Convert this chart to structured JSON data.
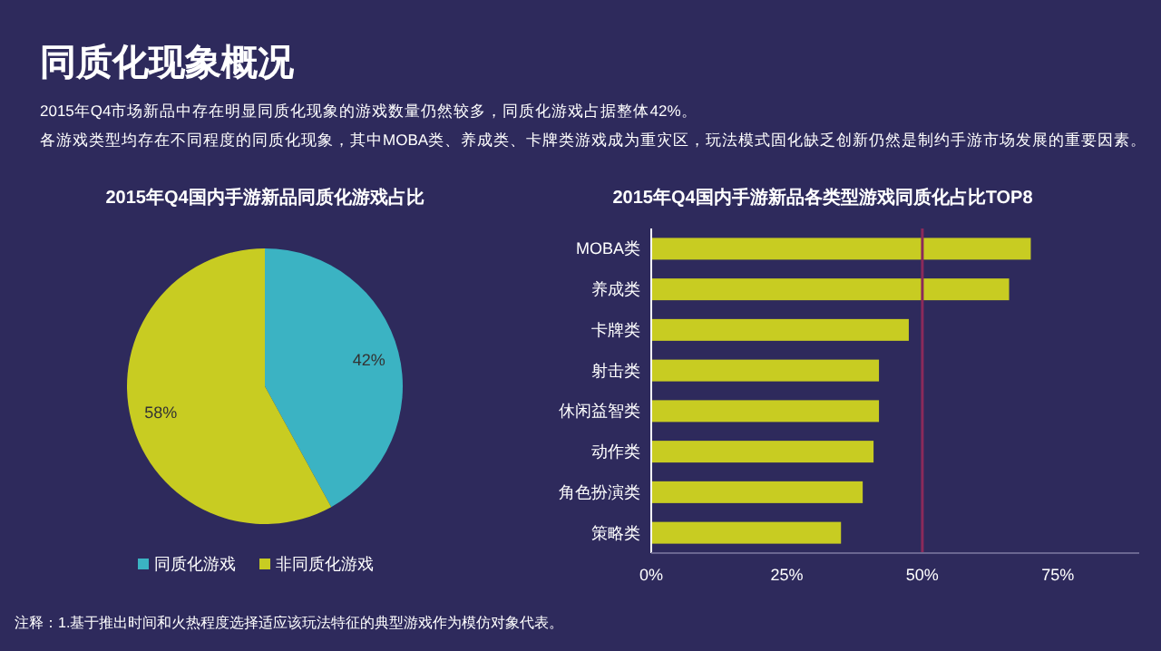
{
  "chart_data": [
    {
      "type": "other",
      "title": "同质化现象概况",
      "subtitle": "2015年Q4市场新品中存在明显同质化现象的游戏数量仍然较多，同质化游戏占据整体42%。",
      "annotations": [
        "各游戏类型均存在不同程度的同质化现象，其中MOBA类、养成类、卡牌类游戏成为重灾区，玩法模式固化缺乏创新仍然是制约手游市场发展的重要因素。",
        "注释：1.基于推出时间和火热程度选择适应该玩法特征的典型游戏作为模仿对象代表。"
      ]
    },
    {
      "type": "pie",
      "title": "2015年Q4国内手游新品同质化游戏占比",
      "categories": [
        "同质化游戏",
        "非同质化游戏"
      ],
      "values": [
        42,
        58
      ],
      "colors": [
        "#3bb3c3",
        "#c8cc22"
      ],
      "value_labels": [
        "42%",
        "58%"
      ],
      "legend": "bottom"
    },
    {
      "type": "bar",
      "orientation": "horizontal",
      "title": "2015年Q4国内手游新品各类型游戏同质化占比TOP8",
      "categories": [
        "MOBA类",
        "养成类",
        "卡牌类",
        "射击类",
        "休闲益智类",
        "动作类",
        "角色扮演类",
        "策略类"
      ],
      "values": [
        70,
        66,
        47.5,
        42,
        42,
        41,
        39,
        35
      ],
      "color": "#c8cc22",
      "xlim": [
        0,
        90
      ],
      "xticks": [
        {
          "value": 0,
          "label": "0%"
        },
        {
          "value": 25,
          "label": "25%"
        },
        {
          "value": 50,
          "label": "50%"
        },
        {
          "value": 75,
          "label": "75%"
        }
      ],
      "ref_lines": [
        {
          "axis": "x",
          "value": 50,
          "color": "#8b2a5a"
        }
      ],
      "grid": false
    }
  ]
}
